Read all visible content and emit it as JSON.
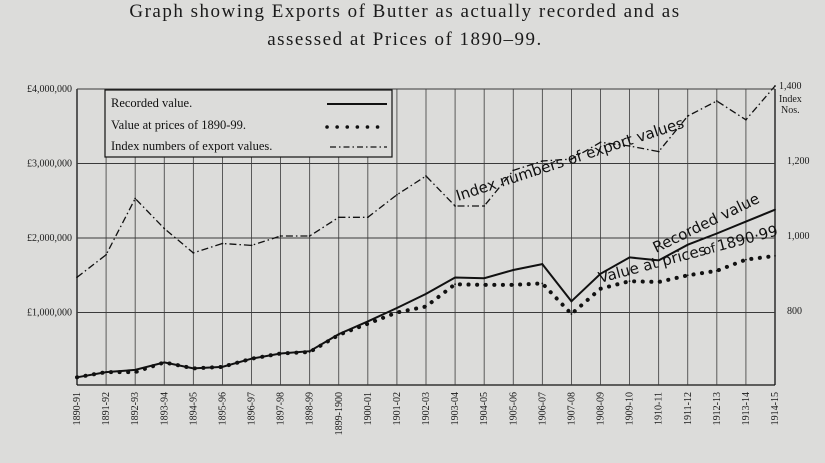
{
  "chart_data": {
    "type": "line",
    "title_line1": "Graph showing Exports of Butter as actually recorded and as",
    "title_line2": "assessed at Prices of 1890–99.",
    "categories": [
      "1890-91",
      "1891-92",
      "1892-93",
      "1893-94",
      "1894-95",
      "1895-96",
      "1896-97",
      "1897-98",
      "1898-99",
      "1899-1900",
      "1900-01",
      "1901-02",
      "1902-03",
      "1903-04",
      "1904-05",
      "1905-06",
      "1906-07",
      "1907-08",
      "1908-09",
      "1909-10",
      "1910-11",
      "1911-12",
      "1912-13",
      "1913-14",
      "1914-15"
    ],
    "left_axis": {
      "ylim": [
        0,
        4000000
      ],
      "ticks": [
        1000000,
        2000000,
        3000000,
        4000000
      ],
      "tick_labels": [
        "£1,000,000",
        "£2,000,000",
        "£3,000,000",
        "£4,000,000"
      ]
    },
    "right_axis": {
      "ylim": [
        600,
        1400
      ],
      "ticks": [
        800,
        1000,
        1200,
        1400
      ],
      "tick_labels": [
        "800",
        "1,000",
        "1,200",
        "1,400"
      ],
      "label": "Index Nos."
    },
    "grid": true,
    "legend_position": "top-left",
    "series": [
      {
        "name": "Recorded value.",
        "axis": "left",
        "style": "solid",
        "values": [
          130000,
          200000,
          230000,
          330000,
          250000,
          270000,
          380000,
          450000,
          480000,
          710000,
          880000,
          1060000,
          1250000,
          1470000,
          1460000,
          1570000,
          1650000,
          1150000,
          1520000,
          1740000,
          1700000,
          1910000,
          2060000,
          2220000,
          2380000
        ]
      },
      {
        "name": "Value at prices of 1890-99.",
        "axis": "left",
        "style": "dotted",
        "values": [
          130000,
          200000,
          200000,
          330000,
          250000,
          270000,
          380000,
          450000,
          470000,
          700000,
          850000,
          1000000,
          1080000,
          1380000,
          1370000,
          1370000,
          1390000,
          980000,
          1320000,
          1420000,
          1410000,
          1500000,
          1560000,
          1710000,
          1760000
        ]
      },
      {
        "name": "Index numbers of export values.",
        "axis": "right",
        "style": "dash-dot",
        "values": [
          890,
          950,
          1100,
          1020,
          955,
          980,
          975,
          1000,
          1000,
          1050,
          1050,
          1110,
          1160,
          1080,
          1080,
          1175,
          1200,
          1205,
          1250,
          1240,
          1225,
          1320,
          1360,
          1310,
          1400
        ]
      }
    ],
    "annotations": {
      "index": "Index numbers of export values",
      "recorded": "Recorded value",
      "value_at_prices": "Value at prices",
      "value_at_prices_of": "of",
      "value_at_prices_years": "1890·99"
    }
  },
  "colors": {
    "background": "#dcdcda",
    "ink": "#111111",
    "grid": "#3a3a3a"
  }
}
